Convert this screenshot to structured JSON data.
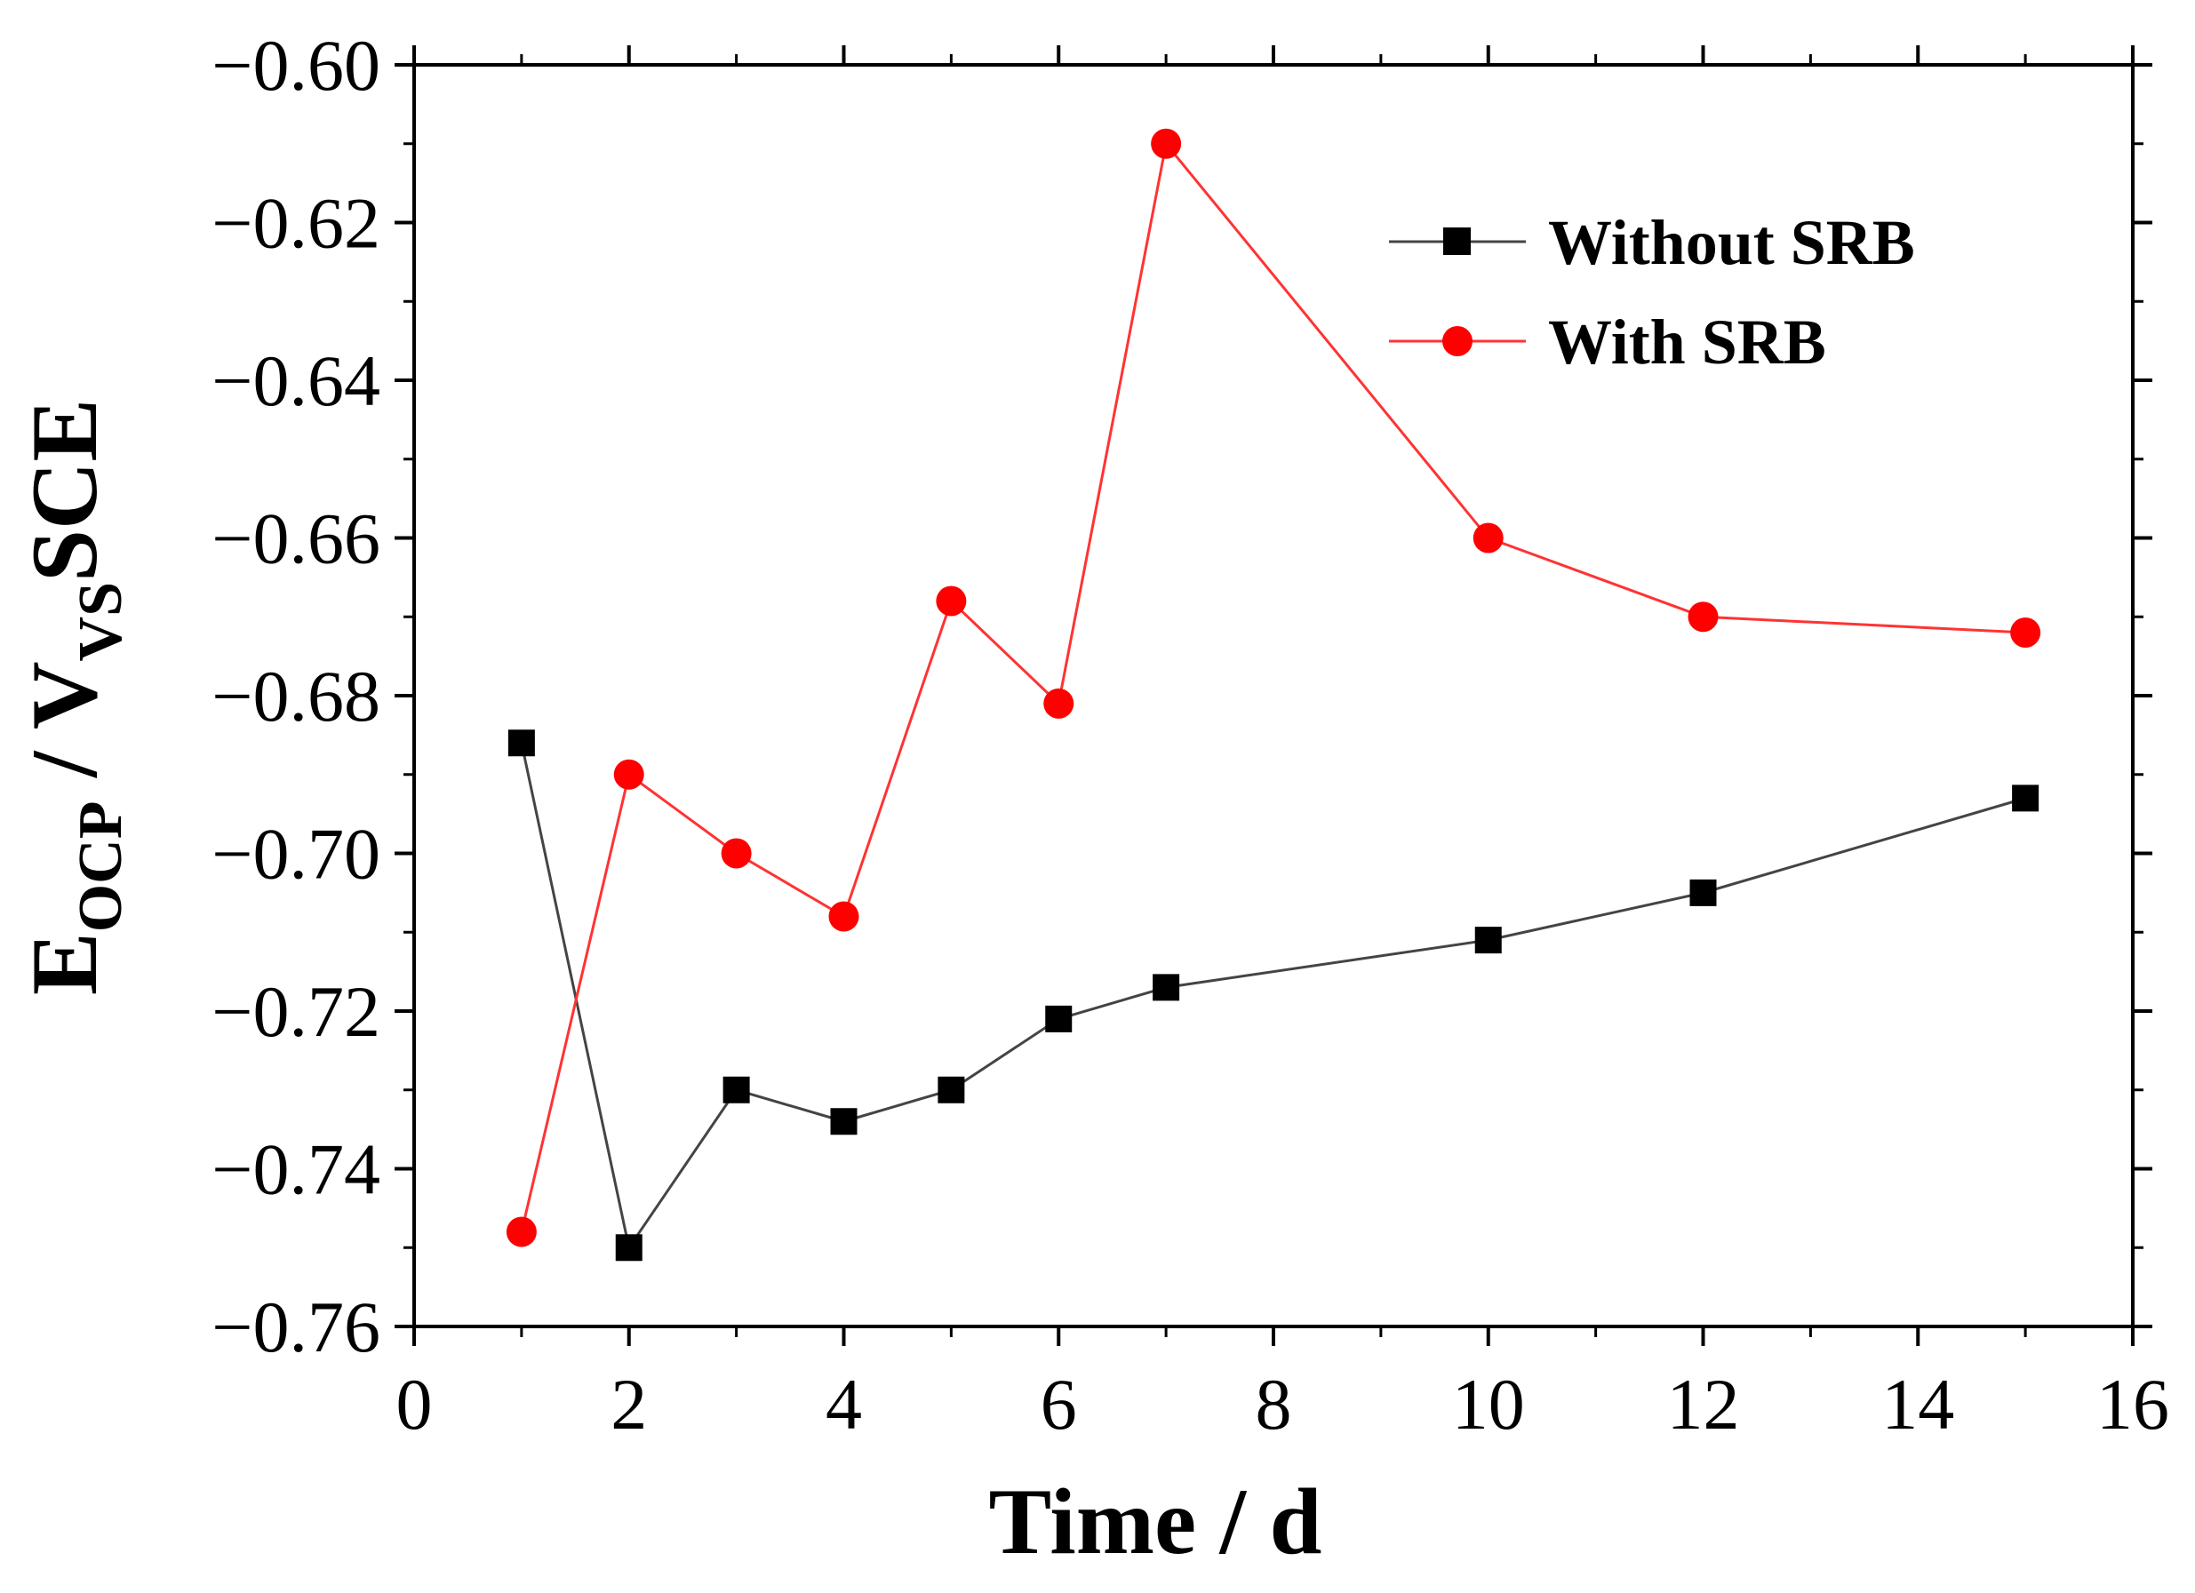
{
  "chart_data": {
    "type": "line",
    "title": "",
    "xlabel": "Time / d",
    "ylabel": {
      "main": "E",
      "main_sub": "OCP",
      "sep": " / V",
      "vs_sub": "VS",
      "ref": "SCE"
    },
    "xlim": [
      0,
      16
    ],
    "ylim": [
      -0.76,
      -0.6
    ],
    "x_ticks": [
      0,
      2,
      4,
      6,
      8,
      10,
      12,
      14,
      16
    ],
    "x_tick_labels": [
      "0",
      "2",
      "4",
      "6",
      "8",
      "10",
      "12",
      "14",
      "16"
    ],
    "y_ticks": [
      -0.6,
      -0.62,
      -0.64,
      -0.66,
      -0.68,
      -0.7,
      -0.72,
      -0.74,
      -0.76
    ],
    "y_tick_labels": [
      "−0.60",
      "−0.62",
      "−0.64",
      "−0.66",
      "−0.68",
      "−0.70",
      "−0.72",
      "−0.74",
      "−0.76"
    ],
    "grid": false,
    "legend_position": "top-right",
    "series": [
      {
        "name": "Without SRB",
        "marker": "square",
        "color": "#000000",
        "line_color": "#444444",
        "x": [
          1,
          2,
          3,
          4,
          5,
          6,
          7,
          10,
          12,
          15
        ],
        "y": [
          -0.686,
          -0.75,
          -0.73,
          -0.734,
          -0.73,
          -0.721,
          -0.717,
          -0.711,
          -0.705,
          -0.693
        ]
      },
      {
        "name": "With SRB",
        "marker": "circle",
        "color": "#ff0000",
        "line_color": "#ff3333",
        "x": [
          1,
          2,
          3,
          4,
          5,
          6,
          7,
          10,
          12,
          15
        ],
        "y": [
          -0.748,
          -0.69,
          -0.7,
          -0.708,
          -0.668,
          -0.681,
          -0.61,
          -0.66,
          -0.67,
          -0.672
        ]
      }
    ]
  }
}
